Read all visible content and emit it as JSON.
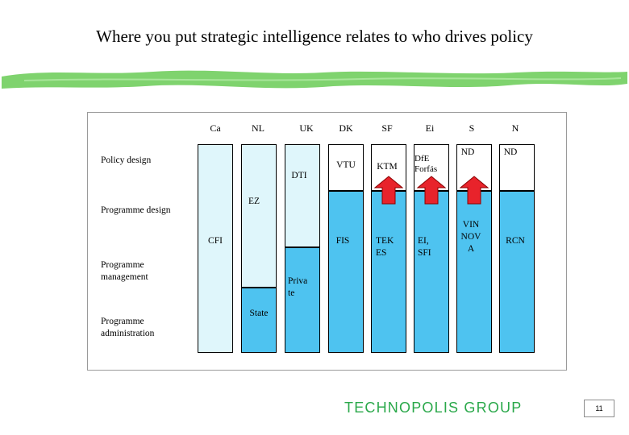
{
  "slide": {
    "title": "Where you put strategic intelligence relates to who drives policy",
    "page_number": "11",
    "footer_logo": "TECHNOPOLIS GROUP"
  },
  "colors": {
    "light_blue": "#dff6fb",
    "dark_blue": "#4ec3f0",
    "arrow_red": "#e8232b",
    "brush_green": "#7fd36e",
    "logo_green": "#2aa84a"
  },
  "columns": [
    "Ca",
    "NL",
    "UK",
    "DK",
    "SF",
    "Ei",
    "S",
    "N"
  ],
  "rows": {
    "policy_design": "Policy design",
    "programme_design": "Programme design",
    "programme_management": [
      "Programme",
      "management"
    ],
    "programme_administration": [
      "Programme",
      "administration"
    ]
  },
  "boxes": {
    "cfi": "CFI",
    "ez": "EZ",
    "state": "State",
    "dti": "DTI",
    "private": [
      "Priva",
      "te"
    ],
    "vtu": "VTU",
    "fis": "FIS",
    "ktm": "KTM",
    "tekes": [
      "TEK",
      "ES"
    ],
    "dte_forfas": [
      "DfE",
      "Forfás"
    ],
    "ei_sfi": [
      "EI,",
      "SFI"
    ],
    "s_nd": "ND",
    "vinnova": [
      "VIN",
      "NOV",
      "A"
    ],
    "n_nd": "ND",
    "rcn": "RCN"
  }
}
